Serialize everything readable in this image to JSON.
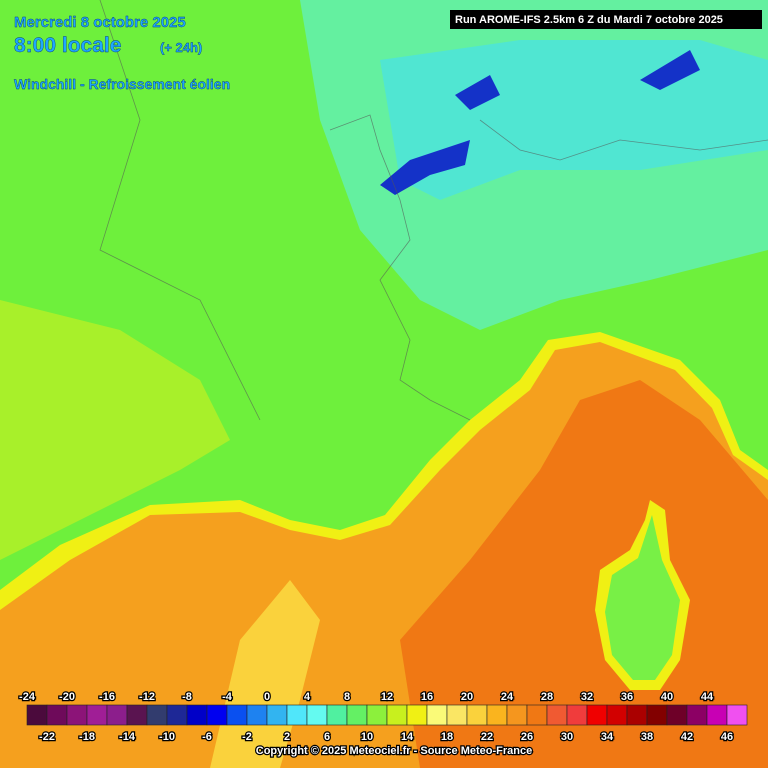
{
  "header": {
    "date": "Mercredi 8 octobre 2025",
    "time": "8:00 locale",
    "lead": "(+ 24h)",
    "parameter": "Windchill - Refroissement éolien",
    "run": "Run AROME-IFS 2.5km 6 Z du Mardi 7 octobre 2025"
  },
  "colorbar": {
    "values": [
      -24,
      -22,
      -20,
      -18,
      -16,
      -14,
      -12,
      -10,
      -8,
      -6,
      -4,
      -2,
      0,
      2,
      4,
      6,
      8,
      10,
      12,
      14,
      16,
      18,
      20,
      22,
      24,
      26,
      28,
      30,
      32,
      34,
      36,
      38,
      40,
      42,
      44,
      46
    ],
    "colors": [
      "#4b0a3c",
      "#6e0a5a",
      "#8c1478",
      "#a01e96",
      "#8c1e8c",
      "#5a1450",
      "#323c6e",
      "#1e2896",
      "#0000c8",
      "#0000f0",
      "#0a50f0",
      "#1e82f0",
      "#32b4f0",
      "#50e6fa",
      "#64faf0",
      "#50f0a0",
      "#64f064",
      "#8cf03c",
      "#c8f01e",
      "#f0f014",
      "#fafa78",
      "#fae664",
      "#fad23c",
      "#fab41e",
      "#f5961e",
      "#f07814",
      "#f05a32",
      "#f03c3c",
      "#f00000",
      "#d20000",
      "#aa0000",
      "#820000",
      "#6e0028",
      "#8c0064",
      "#c800b4",
      "#f050f0"
    ]
  },
  "footer": {
    "copyright": "Copyright © 2025 Meteociel.fr - Source Meteo-France"
  }
}
